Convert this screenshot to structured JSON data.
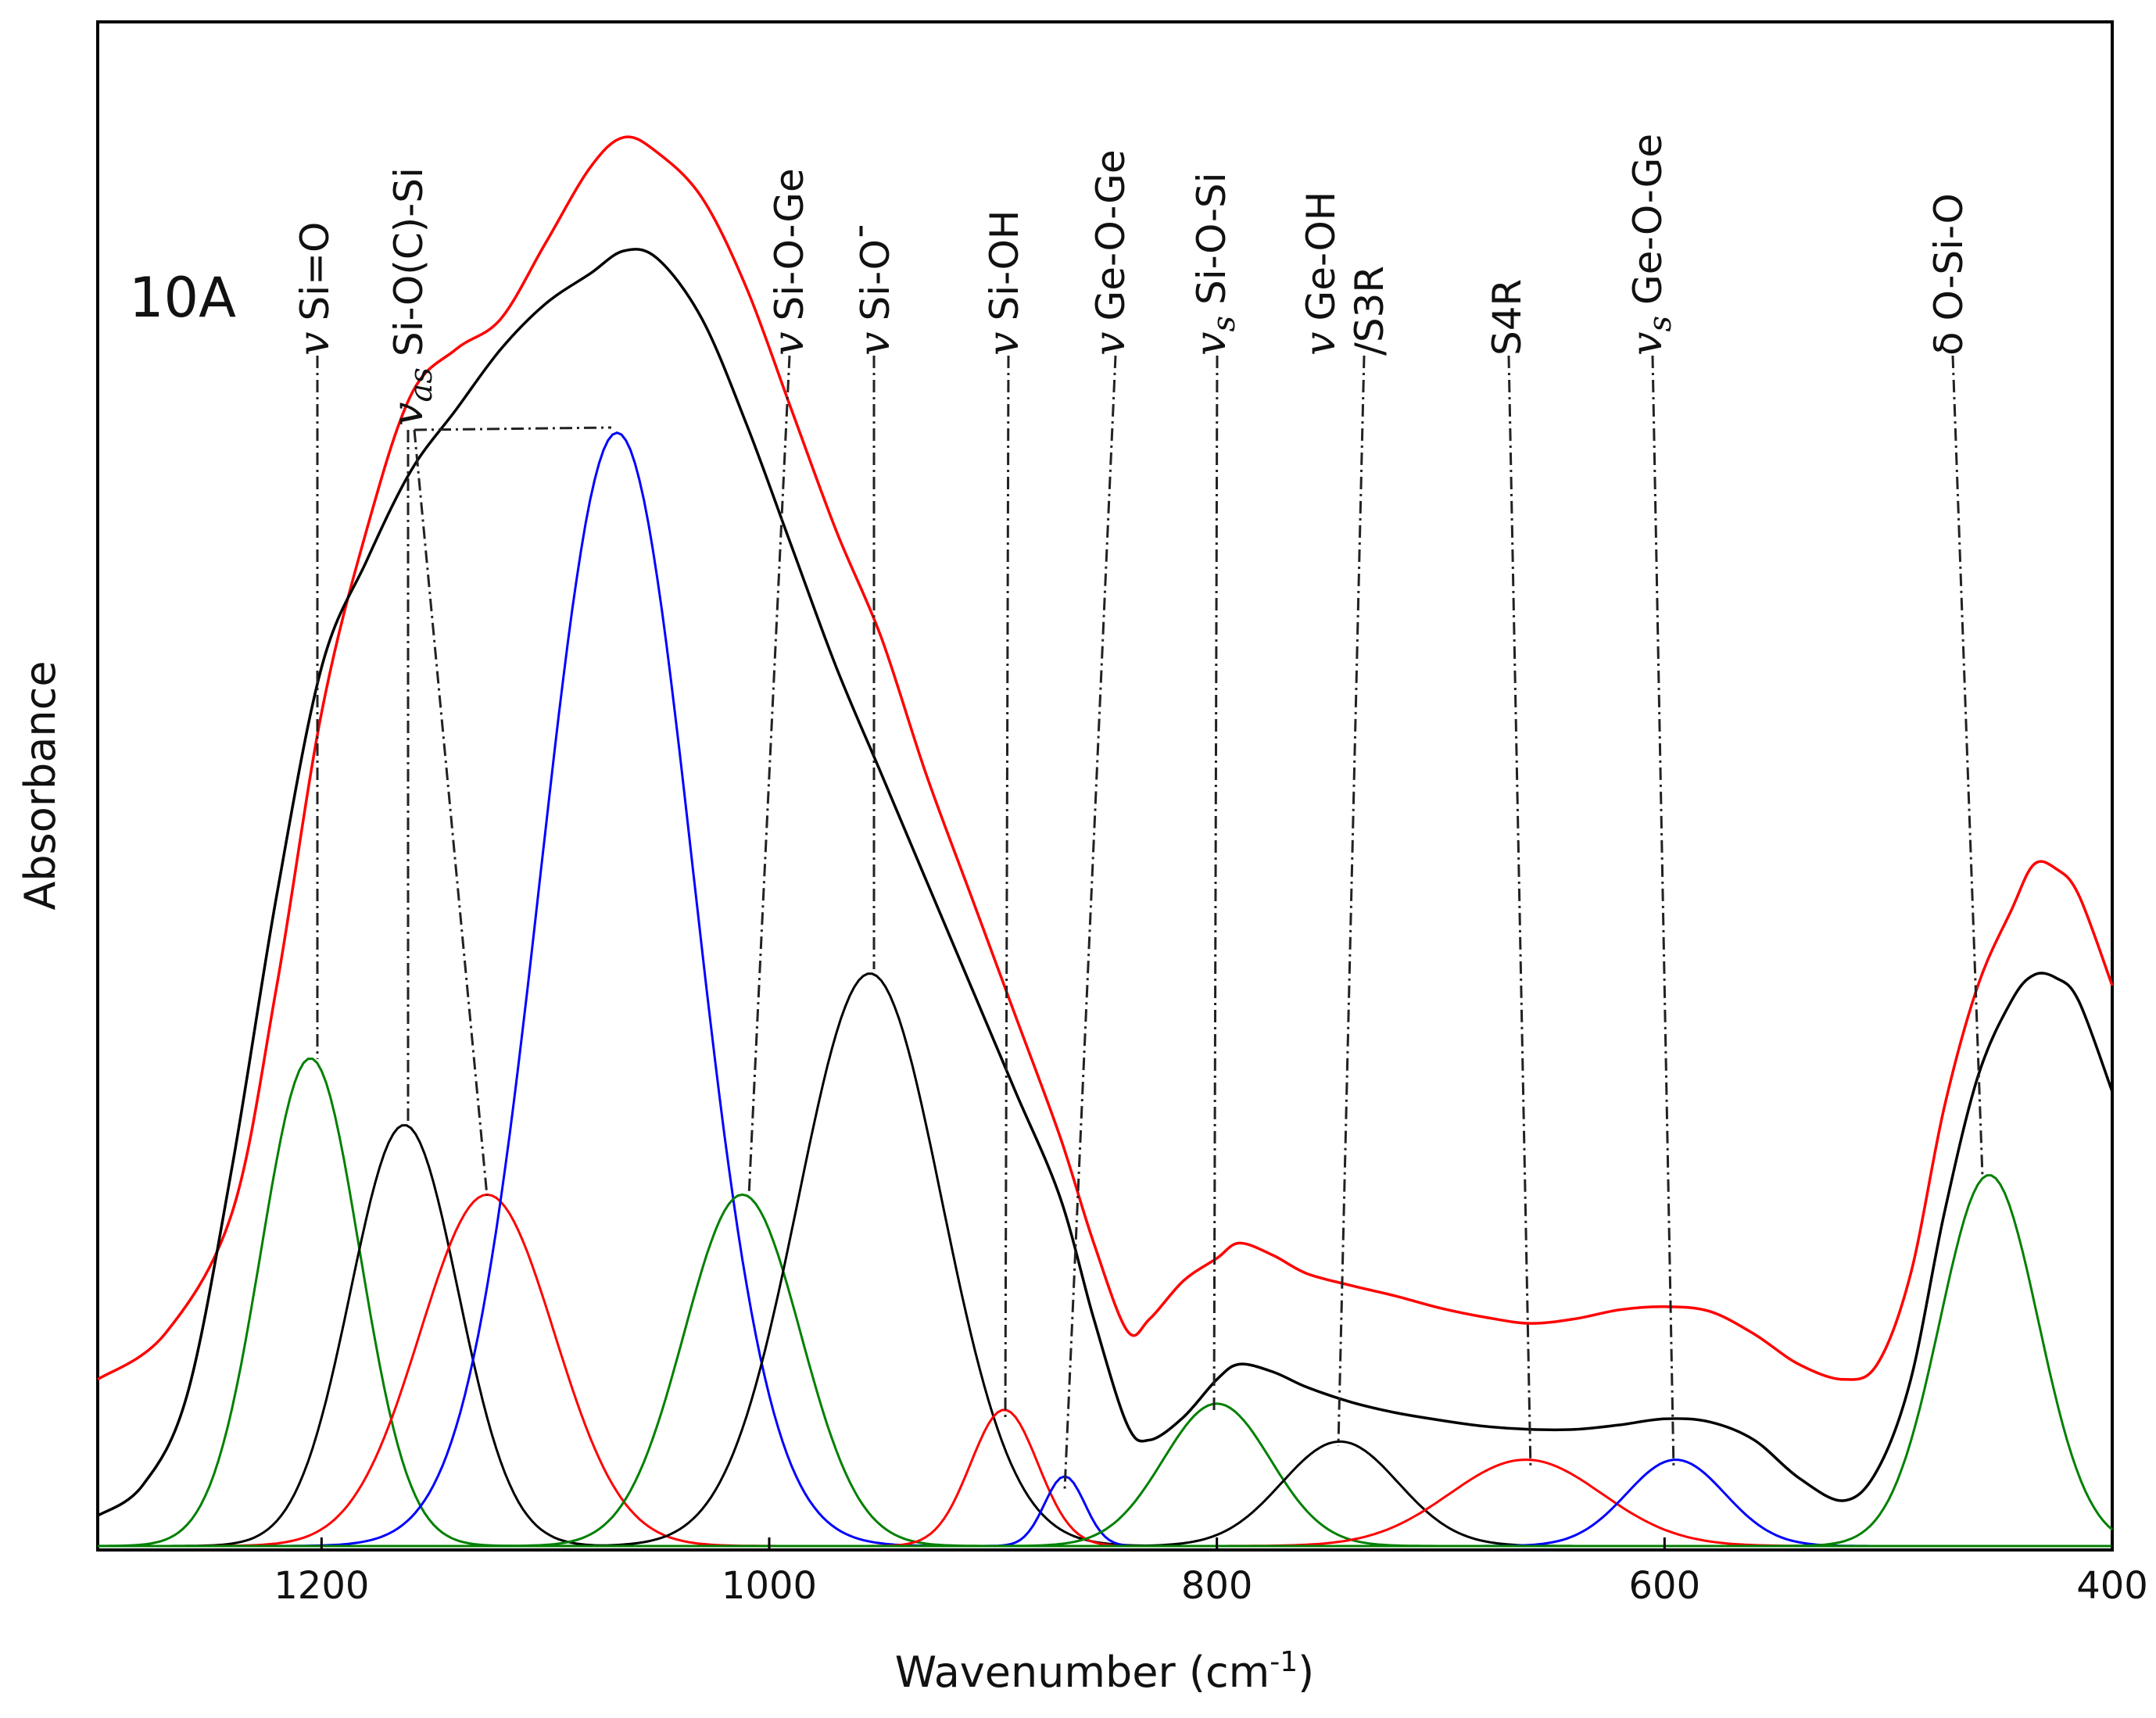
{
  "chart_data": {
    "type": "line",
    "panel_label": "10A",
    "xlabel": "Wavenumber (cm",
    "xlabel_sup": "-1",
    "xlabel_close": ")",
    "ylabel": "Absorbance",
    "xlim": [
      1300,
      400
    ],
    "ylim": [
      0,
      1.0
    ],
    "x_ticks": [
      1200,
      1000,
      800,
      600,
      400
    ],
    "x_tick_labels": [
      "1200",
      "1000",
      "800",
      "600",
      "400"
    ],
    "y_ticks_shown": false,
    "colors": {
      "red": "#ff0000",
      "black": "#000000",
      "blue": "#0000ff",
      "green": "#008000"
    },
    "envelopes": [
      {
        "name": "measured spectrum (red)",
        "color": "#ff0000",
        "points": [
          [
            1300,
            0.11
          ],
          [
            1270,
            0.14
          ],
          [
            1240,
            0.22
          ],
          [
            1220,
            0.37
          ],
          [
            1200,
            0.55
          ],
          [
            1180,
            0.67
          ],
          [
            1160,
            0.76
          ],
          [
            1140,
            0.79
          ],
          [
            1120,
            0.81
          ],
          [
            1100,
            0.86
          ],
          [
            1080,
            0.91
          ],
          [
            1065,
            0.93
          ],
          [
            1050,
            0.92
          ],
          [
            1030,
            0.89
          ],
          [
            1010,
            0.83
          ],
          [
            990,
            0.75
          ],
          [
            970,
            0.67
          ],
          [
            950,
            0.6
          ],
          [
            930,
            0.51
          ],
          [
            910,
            0.43
          ],
          [
            890,
            0.35
          ],
          [
            870,
            0.27
          ],
          [
            855,
            0.2
          ],
          [
            840,
            0.142
          ],
          [
            830,
            0.15
          ],
          [
            815,
            0.175
          ],
          [
            800,
            0.19
          ],
          [
            790,
            0.2
          ],
          [
            775,
            0.192
          ],
          [
            760,
            0.18
          ],
          [
            740,
            0.172
          ],
          [
            720,
            0.165
          ],
          [
            700,
            0.157
          ],
          [
            680,
            0.151
          ],
          [
            660,
            0.147
          ],
          [
            640,
            0.15
          ],
          [
            620,
            0.156
          ],
          [
            600,
            0.158
          ],
          [
            580,
            0.155
          ],
          [
            560,
            0.14
          ],
          [
            540,
            0.12
          ],
          [
            520,
            0.11
          ],
          [
            505,
            0.12
          ],
          [
            490,
            0.18
          ],
          [
            475,
            0.29
          ],
          [
            460,
            0.37
          ],
          [
            445,
            0.42
          ],
          [
            435,
            0.45
          ],
          [
            425,
            0.447
          ],
          [
            415,
            0.43
          ],
          [
            400,
            0.37
          ]
        ]
      },
      {
        "name": "fitted envelope (black)",
        "color": "#000000",
        "points": [
          [
            1300,
            0.02
          ],
          [
            1280,
            0.04
          ],
          [
            1260,
            0.1
          ],
          [
            1240,
            0.25
          ],
          [
            1220,
            0.43
          ],
          [
            1200,
            0.58
          ],
          [
            1180,
            0.65
          ],
          [
            1160,
            0.71
          ],
          [
            1140,
            0.75
          ],
          [
            1120,
            0.79
          ],
          [
            1100,
            0.82
          ],
          [
            1080,
            0.84
          ],
          [
            1065,
            0.855
          ],
          [
            1050,
            0.85
          ],
          [
            1030,
            0.81
          ],
          [
            1010,
            0.74
          ],
          [
            990,
            0.66
          ],
          [
            970,
            0.58
          ],
          [
            950,
            0.51
          ],
          [
            930,
            0.44
          ],
          [
            910,
            0.37
          ],
          [
            890,
            0.3
          ],
          [
            870,
            0.23
          ],
          [
            855,
            0.15
          ],
          [
            840,
            0.08
          ],
          [
            830,
            0.07
          ],
          [
            815,
            0.085
          ],
          [
            800,
            0.11
          ],
          [
            790,
            0.12
          ],
          [
            775,
            0.115
          ],
          [
            760,
            0.105
          ],
          [
            740,
            0.095
          ],
          [
            720,
            0.088
          ],
          [
            700,
            0.083
          ],
          [
            680,
            0.079
          ],
          [
            660,
            0.077
          ],
          [
            640,
            0.077
          ],
          [
            620,
            0.08
          ],
          [
            600,
            0.084
          ],
          [
            580,
            0.082
          ],
          [
            560,
            0.07
          ],
          [
            540,
            0.045
          ],
          [
            520,
            0.03
          ],
          [
            505,
            0.05
          ],
          [
            490,
            0.11
          ],
          [
            475,
            0.22
          ],
          [
            460,
            0.31
          ],
          [
            445,
            0.36
          ],
          [
            435,
            0.377
          ],
          [
            425,
            0.375
          ],
          [
            415,
            0.36
          ],
          [
            400,
            0.3
          ]
        ]
      }
    ],
    "bands": [
      {
        "center": 1205,
        "height": 0.322,
        "sigma": 22,
        "color": "#008000"
      },
      {
        "center": 1163,
        "height": 0.278,
        "sigma": 24,
        "color": "#000000"
      },
      {
        "center": 1126,
        "height": 0.232,
        "sigma": 30,
        "color": "#ff0000"
      },
      {
        "center": 1068,
        "height": 0.735,
        "sigma": 34,
        "color": "#0000ff"
      },
      {
        "center": 1012,
        "height": 0.232,
        "sigma": 26,
        "color": "#008000"
      },
      {
        "center": 955,
        "height": 0.378,
        "sigma": 32,
        "color": "#000000"
      },
      {
        "center": 895,
        "height": 0.09,
        "sigma": 15,
        "color": "#ff0000"
      },
      {
        "center": 868,
        "height": 0.046,
        "sigma": 9,
        "color": "#0000ff"
      },
      {
        "center": 800,
        "height": 0.094,
        "sigma": 24,
        "color": "#008000"
      },
      {
        "center": 745,
        "height": 0.069,
        "sigma": 26,
        "color": "#000000"
      },
      {
        "center": 662,
        "height": 0.057,
        "sigma": 34,
        "color": "#ff0000"
      },
      {
        "center": 595,
        "height": 0.057,
        "sigma": 22,
        "color": "#0000ff"
      },
      {
        "center": 455,
        "height": 0.245,
        "sigma": 22,
        "color": "#008000"
      }
    ],
    "annotations": [
      {
        "symbol": "v",
        "subscript": "",
        "label": "Si=O",
        "wavenumber": 1205
      },
      {
        "symbol": "v",
        "subscript": "as",
        "label": "Si-O(C)-Si",
        "wavenumber": 1163
      },
      {
        "symbol": "v",
        "subscript": "",
        "label": "Si-O-Ge",
        "wavenumber": 1005
      },
      {
        "symbol": "v",
        "subscript": "",
        "label": "Si-O",
        "superscript": "-",
        "wavenumber": 955
      },
      {
        "symbol": "v",
        "subscript": "",
        "label": "Si-OH",
        "wavenumber": 895
      },
      {
        "symbol": "v",
        "subscript": "",
        "label": "Ge-O-Ge",
        "wavenumber": 868
      },
      {
        "symbol": "v",
        "subscript": "s",
        "label": "Si-O-Si",
        "wavenumber": 800
      },
      {
        "symbol": "v",
        "subscript": "",
        "label": "Ge-OH",
        "label2": "/S3R",
        "wavenumber": 745
      },
      {
        "symbol": "",
        "subscript": "",
        "label": "S4R",
        "wavenumber": 662
      },
      {
        "symbol": "v",
        "subscript": "s",
        "label": "Ge-O-Ge",
        "wavenumber": 595
      },
      {
        "symbol": "δ",
        "subscript": "",
        "label": "O-Si-O",
        "wavenumber": 455
      }
    ]
  }
}
